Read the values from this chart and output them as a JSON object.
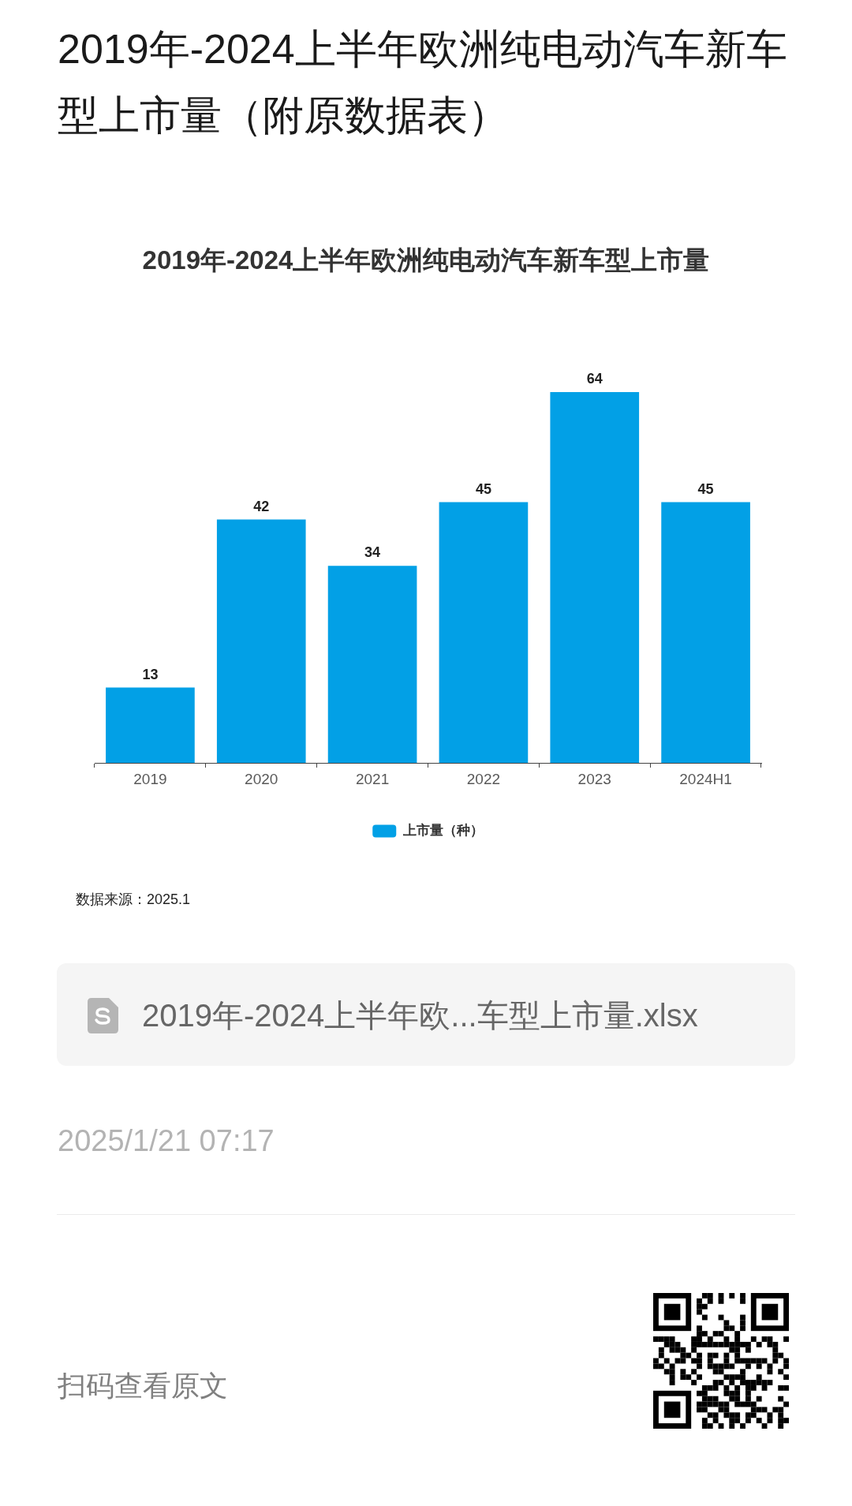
{
  "chart_data": {
    "type": "bar",
    "title": "2019年-2024上半年欧洲纯电动汽车新车型上市量（附原数据表）",
    "subtitle": "2019年-2024上半年欧洲纯电动汽车新车型上市量",
    "categories": [
      "2019",
      "2020",
      "2021",
      "2022",
      "2023",
      "2024H1"
    ],
    "series": [
      {
        "name": "上市量（种）",
        "color": "#02a0e6",
        "values": [
          13,
          42,
          34,
          45,
          64,
          45
        ]
      }
    ],
    "data_labels": true,
    "legend": "bottom",
    "grid": false,
    "tick_labels": "x",
    "annotations": [
      "数据来源：2025.1",
      "2019年-2024上半年欧...车型上市量.xlsx",
      "2025/1/21 07:17",
      "扫码查看原文"
    ]
  }
}
